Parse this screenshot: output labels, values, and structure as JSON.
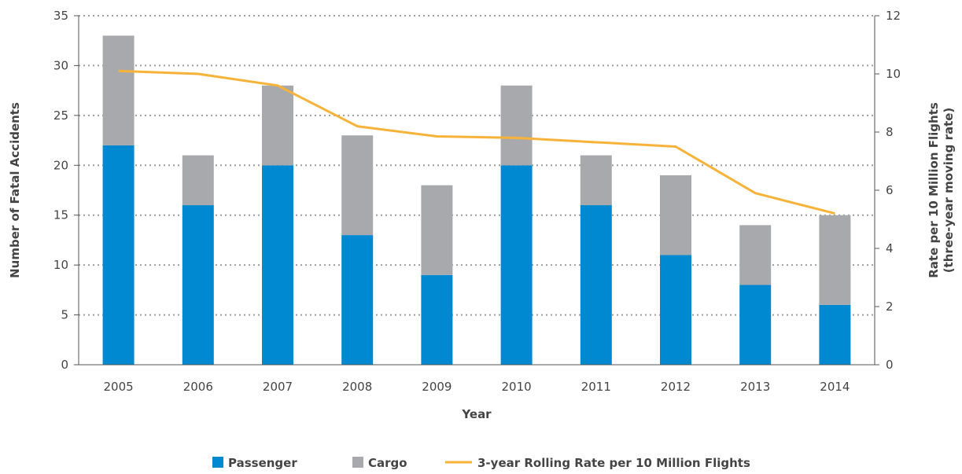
{
  "chart_data": {
    "type": "bar",
    "categories": [
      "2005",
      "2006",
      "2007",
      "2008",
      "2009",
      "2010",
      "2011",
      "2012",
      "2013",
      "2014"
    ],
    "series": [
      {
        "name": "Passenger",
        "type": "bar",
        "stack": "accidents",
        "axis": "left",
        "color": "#0088d0",
        "values": [
          22,
          16,
          20,
          13,
          9,
          20,
          16,
          11,
          8,
          6
        ]
      },
      {
        "name": "Cargo",
        "type": "bar",
        "stack": "accidents",
        "axis": "left",
        "color": "#a7a9ac",
        "values": [
          11,
          5,
          8,
          10,
          9,
          8,
          5,
          8,
          6,
          9
        ]
      },
      {
        "name": "3-year Rolling Rate per 10 Million Flights",
        "type": "line",
        "axis": "right",
        "color": "#f7b339",
        "values": [
          10.1,
          10.0,
          9.6,
          8.2,
          7.85,
          7.8,
          7.65,
          7.5,
          5.9,
          5.2
        ]
      }
    ],
    "xlabel": "Year",
    "ylabel": "Number of Fatal Accidents",
    "y2label": [
      "Rate per 10 Million Flights",
      "(three-year moving rate)"
    ],
    "ylim": [
      0,
      35
    ],
    "y2lim": [
      0,
      12
    ],
    "yticks": [
      "0",
      "5",
      "10",
      "15",
      "20",
      "25",
      "30",
      "35"
    ],
    "y2ticks": [
      "0",
      "2",
      "4",
      "6",
      "8",
      "10",
      "12"
    ],
    "grid": "horizontal dotted",
    "legend_position": "bottom"
  }
}
